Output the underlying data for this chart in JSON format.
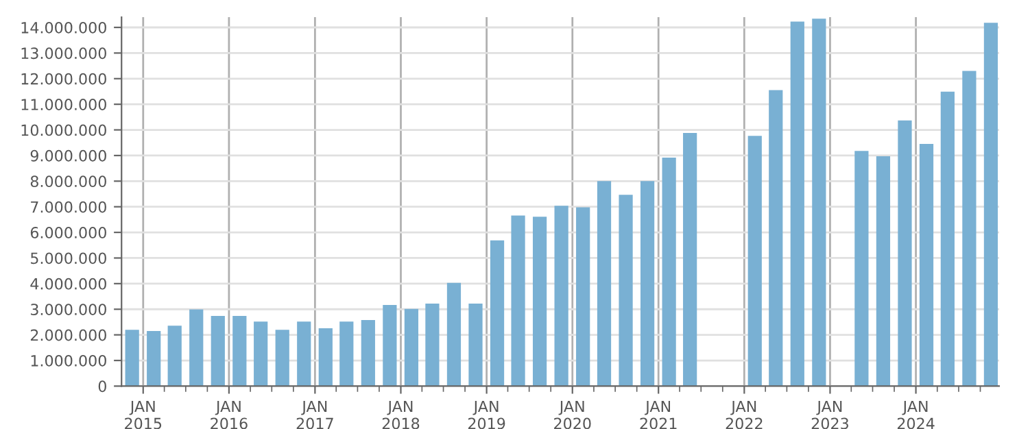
{
  "chart_data": {
    "type": "bar",
    "x": [
      "2014-11-15",
      "2015-02-15",
      "2015-05-15",
      "2015-08-15",
      "2015-11-15",
      "2016-02-15",
      "2016-05-15",
      "2016-08-15",
      "2016-11-15",
      "2017-02-15",
      "2017-05-15",
      "2017-08-15",
      "2017-11-15",
      "2018-02-15",
      "2018-05-15",
      "2018-08-15",
      "2018-11-15",
      "2019-02-15",
      "2019-05-15",
      "2019-08-15",
      "2019-11-15",
      "2020-02-15",
      "2020-05-15",
      "2020-08-15",
      "2020-11-15",
      "2021-02-15",
      "2021-05-15",
      "2021-08-15",
      "2021-11-15",
      "2022-02-15",
      "2022-05-15",
      "2022-08-15",
      "2022-11-15",
      "2023-02-15",
      "2023-05-15",
      "2023-08-15",
      "2023-11-15",
      "2024-02-15",
      "2024-05-15",
      "2024-08-15",
      "2024-11-15"
    ],
    "values": [
      2200000,
      2150000,
      2360000,
      2990000,
      2740000,
      2740000,
      2520000,
      2200000,
      2520000,
      2260000,
      2520000,
      2580000,
      3170000,
      3010000,
      3220000,
      4030000,
      3220000,
      5690000,
      6660000,
      6610000,
      7040000,
      6980000,
      8000000,
      7470000,
      8000000,
      8920000,
      9880000,
      null,
      null,
      9770000,
      11550000,
      14230000,
      14340000,
      null,
      9180000,
      8970000,
      10370000,
      9450000,
      11490000,
      12300000,
      14180000
    ],
    "color": "#79b0d3",
    "ylim": [
      0,
      14400000
    ],
    "yticks": [
      {
        "value": 0,
        "label": "0"
      },
      {
        "value": 1000000,
        "label": "1.000.000"
      },
      {
        "value": 2000000,
        "label": "2.000.000"
      },
      {
        "value": 3000000,
        "label": "3.000.000"
      },
      {
        "value": 4000000,
        "label": "4.000.000"
      },
      {
        "value": 5000000,
        "label": "5.000.000"
      },
      {
        "value": 6000000,
        "label": "6.000.000"
      },
      {
        "value": 7000000,
        "label": "7.000.000"
      },
      {
        "value": 8000000,
        "label": "8.000.000"
      },
      {
        "value": 9000000,
        "label": "9.000.000"
      },
      {
        "value": 10000000,
        "label": "10.000.000"
      },
      {
        "value": 11000000,
        "label": "11.000.000"
      },
      {
        "value": 12000000,
        "label": "12.000.000"
      },
      {
        "value": 13000000,
        "label": "13.000.000"
      },
      {
        "value": 14000000,
        "label": "14.000.000"
      }
    ],
    "xlim": [
      "2014-10-01",
      "2024-12-20"
    ],
    "xticks": [
      {
        "value": "2015-01-01",
        "label": "JAN\n2015"
      },
      {
        "value": "2015-04-01",
        "label": null
      },
      {
        "value": "2015-07-01",
        "label": null
      },
      {
        "value": "2015-10-01",
        "label": null
      },
      {
        "value": "2016-01-01",
        "label": "JAN\n2016"
      },
      {
        "value": "2016-04-01",
        "label": null
      },
      {
        "value": "2016-07-01",
        "label": null
      },
      {
        "value": "2016-10-01",
        "label": null
      },
      {
        "value": "2017-01-01",
        "label": "JAN\n2017"
      },
      {
        "value": "2017-04-01",
        "label": null
      },
      {
        "value": "2017-07-01",
        "label": null
      },
      {
        "value": "2017-10-01",
        "label": null
      },
      {
        "value": "2018-01-01",
        "label": "JAN\n2018"
      },
      {
        "value": "2018-04-01",
        "label": null
      },
      {
        "value": "2018-07-01",
        "label": null
      },
      {
        "value": "2018-10-01",
        "label": null
      },
      {
        "value": "2019-01-01",
        "label": "JAN\n2019"
      },
      {
        "value": "2019-04-01",
        "label": null
      },
      {
        "value": "2019-07-01",
        "label": null
      },
      {
        "value": "2019-10-01",
        "label": null
      },
      {
        "value": "2020-01-01",
        "label": "JAN\n2020"
      },
      {
        "value": "2020-04-01",
        "label": null
      },
      {
        "value": "2020-07-01",
        "label": null
      },
      {
        "value": "2020-10-01",
        "label": null
      },
      {
        "value": "2021-01-01",
        "label": "JAN\n2021"
      },
      {
        "value": "2021-04-01",
        "label": null
      },
      {
        "value": "2021-07-01",
        "label": null
      },
      {
        "value": "2021-10-01",
        "label": null
      },
      {
        "value": "2022-01-01",
        "label": "JAN\n2022"
      },
      {
        "value": "2022-04-01",
        "label": null
      },
      {
        "value": "2022-07-01",
        "label": null
      },
      {
        "value": "2022-10-01",
        "label": null
      },
      {
        "value": "2023-01-01",
        "label": "JAN\n2023"
      },
      {
        "value": "2023-04-01",
        "label": null
      },
      {
        "value": "2023-07-01",
        "label": null
      },
      {
        "value": "2023-10-01",
        "label": null
      },
      {
        "value": "2024-01-01",
        "label": "JAN\n2024"
      },
      {
        "value": "2024-04-01",
        "label": null
      },
      {
        "value": "2024-07-01",
        "label": null
      },
      {
        "value": "2024-10-01",
        "label": null
      }
    ],
    "grid": true
  }
}
